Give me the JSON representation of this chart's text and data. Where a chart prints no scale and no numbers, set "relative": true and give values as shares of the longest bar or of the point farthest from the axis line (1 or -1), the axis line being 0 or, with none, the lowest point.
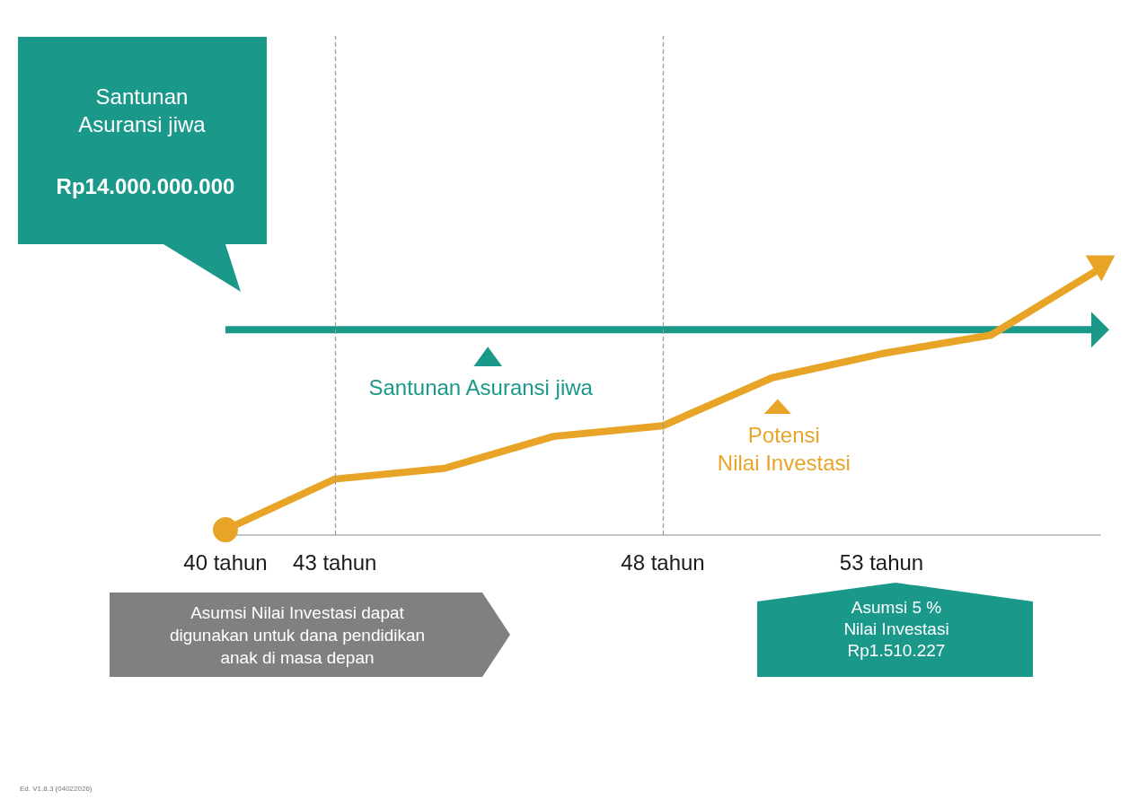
{
  "chart_data": {
    "type": "line",
    "relative": true,
    "legend": "bottom",
    "categories": [
      "40 tahun",
      "43 tahun",
      null,
      null,
      "48 tahun",
      null,
      "53 tahun",
      null,
      null
    ],
    "series": [
      {
        "name": "Santunan Asuransi jiwa",
        "color": "#1a998a",
        "values": [
          0.77,
          0.77,
          0.77,
          0.77,
          0.77,
          0.77,
          0.77,
          0.77,
          0.77
        ]
      },
      {
        "name": "Potensi Nilai Investasi",
        "color": "#e8a427",
        "values": [
          0.02,
          0.21,
          0.25,
          0.37,
          0.41,
          0.59,
          0.68,
          0.75,
          1
        ]
      }
    ],
    "ref_lines": [
      {
        "axis": "x",
        "value": "43 tahun",
        "color": "#9a9a9a",
        "line_style": "dashed"
      },
      {
        "axis": "x",
        "value": "48 tahun",
        "color": "#9a9a9a",
        "line_style": "dashed"
      }
    ],
    "annotations": [
      "Santunan Asuransi jiwa",
      "Rp14.000.000.000",
      "Asumsi Nilai Investasi dapat digunakan untuk dana pendidikan anak di masa depan",
      "Asumsi 5 % Nilai Investasi Rp1.510.227",
      "Ed. V1.8.3 (04022026)"
    ]
  }
}
